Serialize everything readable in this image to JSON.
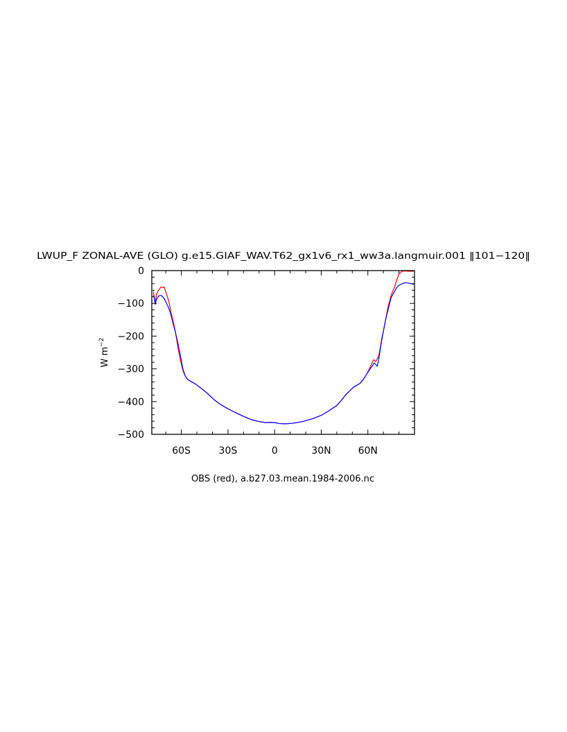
{
  "chart_data": {
    "type": "line",
    "title": "LWUP_F ZONAL-AVE (GLO) g.e15.GIAF_WAV.T62_gx1v6_rx1_ww3a.langmuir.001 ‖101−120‖",
    "subtitle": "OBS (red), a.b27.03.mean.1984-2006.nc",
    "xlabel": "",
    "ylabel": "W m",
    "ylabel_superscript": "−2",
    "xlim": [
      -79,
      90
    ],
    "ylim": [
      -500,
      0
    ],
    "x_ticks": [
      {
        "value": -60,
        "label": "60S"
      },
      {
        "value": -30,
        "label": "30S"
      },
      {
        "value": 0,
        "label": "0"
      },
      {
        "value": 30,
        "label": "30N"
      },
      {
        "value": 60,
        "label": "60N"
      }
    ],
    "y_ticks": [
      {
        "value": 0,
        "label": "0"
      },
      {
        "value": -100,
        "label": "−100"
      },
      {
        "value": -200,
        "label": "−200"
      },
      {
        "value": -300,
        "label": "−300"
      },
      {
        "value": -400,
        "label": "−400"
      },
      {
        "value": -500,
        "label": "−500"
      }
    ],
    "grid": false,
    "series": [
      {
        "color": "#ff0000",
        "points": [
          [
            -78,
            -65
          ],
          [
            -77.5,
            -78
          ],
          [
            -76.8,
            -98
          ],
          [
            -76,
            -72
          ],
          [
            -75,
            -62
          ],
          [
            -74,
            -56
          ],
          [
            -73,
            -50
          ],
          [
            -72,
            -52
          ],
          [
            -71,
            -50
          ],
          [
            -70.5,
            -58
          ],
          [
            -69.5,
            -72
          ],
          [
            -68,
            -95
          ],
          [
            -66.5,
            -130
          ],
          [
            -65,
            -160
          ],
          [
            -63.5,
            -195
          ],
          [
            -62,
            -240
          ],
          [
            -60.5,
            -275
          ],
          [
            -59,
            -305
          ],
          [
            -57.5,
            -322
          ],
          [
            -56,
            -332
          ],
          [
            -54,
            -338
          ],
          [
            -51,
            -346
          ],
          [
            -47,
            -360
          ],
          [
            -43,
            -376
          ],
          [
            -39,
            -394
          ],
          [
            -35,
            -408
          ],
          [
            -30,
            -422
          ],
          [
            -25,
            -434
          ],
          [
            -20,
            -445
          ],
          [
            -15,
            -455
          ],
          [
            -10,
            -461
          ],
          [
            -6,
            -464
          ],
          [
            -3,
            -463
          ],
          [
            0,
            -464
          ],
          [
            3,
            -467
          ],
          [
            7,
            -468
          ],
          [
            12,
            -466
          ],
          [
            18,
            -461
          ],
          [
            24,
            -453
          ],
          [
            30,
            -442
          ],
          [
            35,
            -428
          ],
          [
            40,
            -412
          ],
          [
            43,
            -396
          ],
          [
            46,
            -378
          ],
          [
            49,
            -364
          ],
          [
            51,
            -355
          ],
          [
            53,
            -350
          ],
          [
            55,
            -344
          ],
          [
            57,
            -333
          ],
          [
            59,
            -318
          ],
          [
            61,
            -300
          ],
          [
            63,
            -278
          ],
          [
            64,
            -272
          ],
          [
            65,
            -278
          ],
          [
            66,
            -270
          ],
          [
            67,
            -260
          ],
          [
            68,
            -235
          ],
          [
            69,
            -205
          ],
          [
            70,
            -185
          ],
          [
            71,
            -160
          ],
          [
            72,
            -135
          ],
          [
            73,
            -110
          ],
          [
            74,
            -93
          ],
          [
            75,
            -75
          ],
          [
            77,
            -52
          ],
          [
            78.5,
            -30
          ],
          [
            80,
            -10
          ],
          [
            82,
            -2
          ],
          [
            84,
            -1
          ],
          [
            86,
            -2
          ],
          [
            88,
            -2
          ],
          [
            89.5,
            -2
          ]
        ]
      },
      {
        "color": "#0000ff",
        "points": [
          [
            -78,
            -75
          ],
          [
            -77.5,
            -82
          ],
          [
            -76.8,
            -103
          ],
          [
            -76,
            -88
          ],
          [
            -75,
            -80
          ],
          [
            -74,
            -76
          ],
          [
            -73,
            -76
          ],
          [
            -72,
            -80
          ],
          [
            -71,
            -86
          ],
          [
            -70,
            -95
          ],
          [
            -68.5,
            -110
          ],
          [
            -67,
            -130
          ],
          [
            -65.5,
            -158
          ],
          [
            -64,
            -185
          ],
          [
            -62.5,
            -215
          ],
          [
            -61,
            -250
          ],
          [
            -60,
            -275
          ],
          [
            -59,
            -300
          ],
          [
            -57.5,
            -322
          ],
          [
            -56,
            -332
          ],
          [
            -54,
            -338
          ],
          [
            -51,
            -346
          ],
          [
            -47,
            -360
          ],
          [
            -43,
            -376
          ],
          [
            -39,
            -394
          ],
          [
            -35,
            -408
          ],
          [
            -30,
            -422
          ],
          [
            -25,
            -434
          ],
          [
            -20,
            -445
          ],
          [
            -15,
            -455
          ],
          [
            -10,
            -461
          ],
          [
            -6,
            -464
          ],
          [
            -3,
            -464
          ],
          [
            0,
            -464
          ],
          [
            3,
            -467
          ],
          [
            7,
            -468
          ],
          [
            12,
            -466
          ],
          [
            18,
            -461
          ],
          [
            24,
            -453
          ],
          [
            30,
            -442
          ],
          [
            35,
            -428
          ],
          [
            40,
            -412
          ],
          [
            43,
            -396
          ],
          [
            46,
            -378
          ],
          [
            49,
            -364
          ],
          [
            51,
            -355
          ],
          [
            53,
            -350
          ],
          [
            55,
            -344
          ],
          [
            57,
            -333
          ],
          [
            59,
            -318
          ],
          [
            61,
            -303
          ],
          [
            63,
            -290
          ],
          [
            64,
            -282
          ],
          [
            65,
            -286
          ],
          [
            66,
            -292
          ],
          [
            67,
            -270
          ],
          [
            68,
            -240
          ],
          [
            69,
            -210
          ],
          [
            70,
            -185
          ],
          [
            71,
            -160
          ],
          [
            72,
            -138
          ],
          [
            73,
            -120
          ],
          [
            74,
            -100
          ],
          [
            75,
            -82
          ],
          [
            77,
            -65
          ],
          [
            78.5,
            -52
          ],
          [
            80,
            -45
          ],
          [
            82,
            -40
          ],
          [
            84,
            -37
          ],
          [
            86,
            -38
          ],
          [
            88,
            -40
          ],
          [
            89.5,
            -42
          ]
        ]
      }
    ]
  }
}
